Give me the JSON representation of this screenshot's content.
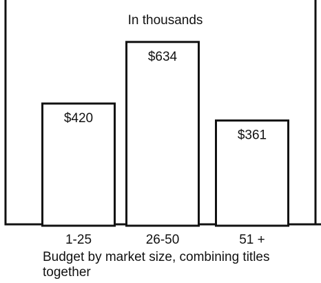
{
  "chart_data": {
    "type": "bar",
    "subtitle": "In thousands",
    "categories": [
      "1-25",
      "26-50",
      "51 +"
    ],
    "values": [
      420,
      634,
      361
    ],
    "value_labels": [
      "$420",
      "$634",
      "$361"
    ],
    "ylim": [
      0,
      780
    ],
    "grid": false,
    "legend": "none",
    "xlabel": "",
    "ylabel": ""
  },
  "caption": "Budget by market size, combining titles together",
  "colors": {
    "stroke": "#111111",
    "bar_fill": "#ffffff",
    "background": "#ffffff"
  }
}
